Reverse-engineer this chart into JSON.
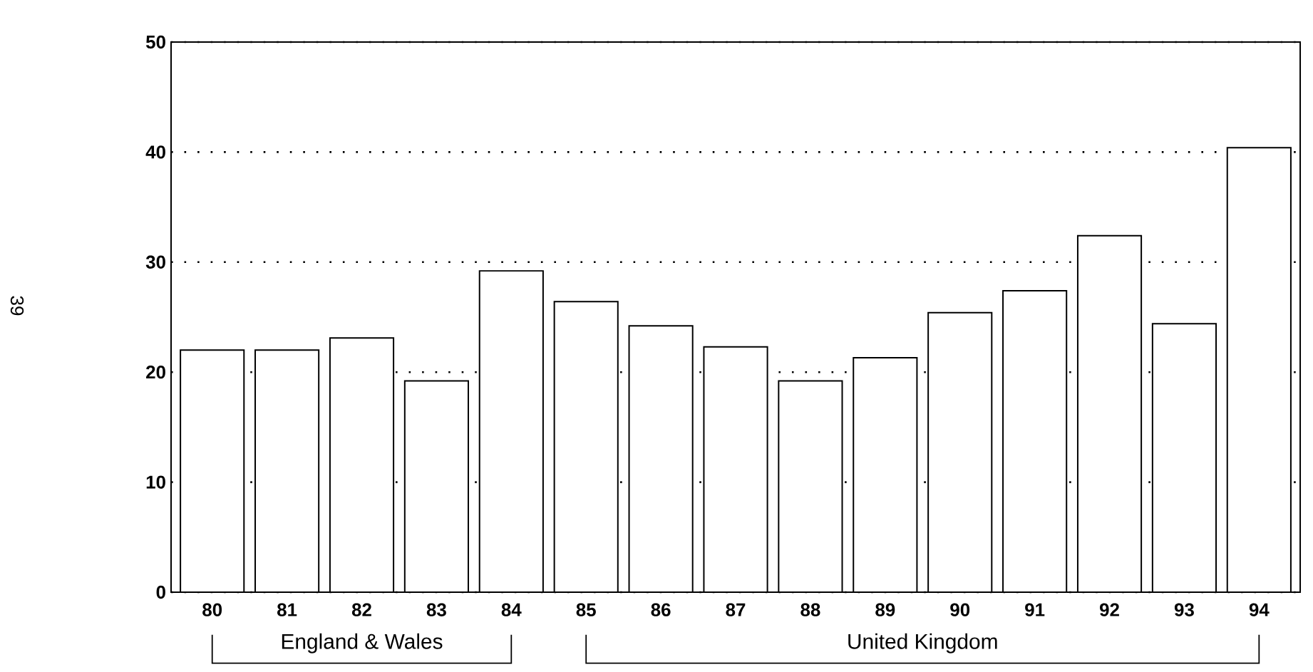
{
  "chart_data": {
    "type": "bar",
    "categories": [
      "80",
      "81",
      "82",
      "83",
      "84",
      "85",
      "86",
      "87",
      "88",
      "89",
      "90",
      "91",
      "92",
      "93",
      "94"
    ],
    "values": [
      22.0,
      22.0,
      23.1,
      19.2,
      29.2,
      26.4,
      24.2,
      22.3,
      19.2,
      21.3,
      25.4,
      27.4,
      32.4,
      24.4,
      40.4
    ],
    "color": "#000000",
    "ylim": [
      0,
      50
    ],
    "yticks": [
      0,
      10,
      20,
      30,
      40,
      50
    ],
    "grid": "y",
    "annotations": [
      "England & Wales",
      "United Kingdom",
      "39"
    ]
  }
}
